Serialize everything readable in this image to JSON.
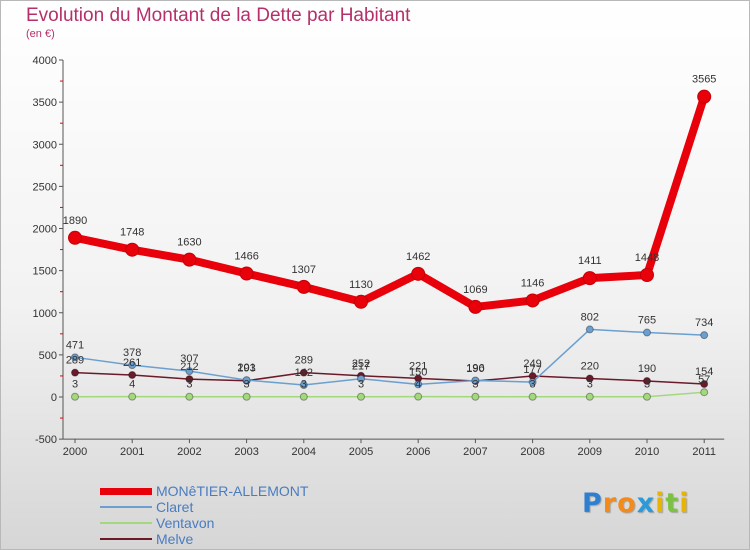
{
  "title": "Evolution du Montant de la Dette par Habitant",
  "subtitle": "(en €)",
  "chart_data": {
    "type": "line",
    "x": [
      "2000",
      "2001",
      "2002",
      "2003",
      "2004",
      "2005",
      "2006",
      "2007",
      "2008",
      "2009",
      "2010",
      "2011"
    ],
    "ylim": [
      -500,
      4000
    ],
    "yticks": [
      "-500",
      "0",
      "500",
      "1000",
      "1500",
      "2000",
      "2500",
      "3000",
      "3500",
      "4000"
    ],
    "grid": false,
    "legend": "bottom-left",
    "series": [
      {
        "name": "MONêTIER-ALLEMONT",
        "color": "#e8000a",
        "width": 8,
        "values": [
          1890,
          1748,
          1630,
          1466,
          1307,
          1130,
          1462,
          1069,
          1146,
          1411,
          1448,
          3565
        ],
        "labels": [
          "1890",
          "1748",
          "1630",
          "1466",
          "1307",
          "1130",
          "1462",
          "1069",
          "1146",
          "1411",
          "1448",
          "3565"
        ]
      },
      {
        "name": "Claret",
        "color": "#6a9fd0",
        "width": 1.5,
        "values": [
          471,
          378,
          307,
          201,
          142,
          217,
          150,
          196,
          177,
          802,
          765,
          734
        ],
        "labels": [
          "471",
          "378",
          "307",
          "201",
          "142",
          "217",
          "150",
          "196",
          "177",
          "802",
          "765",
          "734"
        ]
      },
      {
        "name": "Ventavon",
        "color": "#a3d97c",
        "width": 1.5,
        "values": [
          3,
          4,
          3,
          3,
          3,
          3,
          4,
          3,
          3,
          3,
          3,
          57
        ],
        "labels": [
          "3",
          "4",
          "3",
          "3",
          "3",
          "3",
          "4",
          "3",
          "3",
          "3",
          "3",
          "57"
        ]
      },
      {
        "name": "Melve",
        "color": "#6b1a2a",
        "width": 1.5,
        "values": [
          289,
          261,
          212,
          193,
          289,
          252,
          221,
          190,
          249,
          220,
          190,
          154
        ],
        "labels": [
          "289",
          "261",
          "212",
          "193",
          "289",
          "252",
          "221",
          "190",
          "249",
          "220",
          "190",
          "154"
        ]
      }
    ]
  },
  "logo": {
    "name": "Proxiti",
    "letters": [
      "P",
      "r",
      "o",
      "x",
      "i",
      "t",
      "i"
    ],
    "colors": [
      "#2f7fd0",
      "#f28a1c",
      "#f28a1c",
      "#2a9ad8",
      "#e8b400",
      "#7cc242",
      "#e8b400"
    ]
  }
}
